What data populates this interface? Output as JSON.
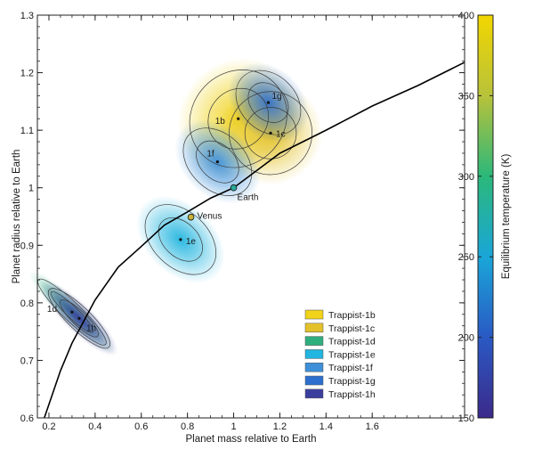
{
  "chart_data": {
    "type": "scatter",
    "title": "",
    "xlabel": "Planet mass relative to Earth",
    "ylabel": "Planet radius relative to Earth",
    "xlim": [
      0.15,
      2.0
    ],
    "ylim": [
      0.6,
      1.3
    ],
    "x_ticks": [
      "0.2",
      "0.4",
      "0.6",
      "0.8",
      "1",
      "1.2",
      "1.4",
      "1.6"
    ],
    "x_tick_values": [
      0.2,
      0.4,
      0.6,
      0.8,
      1.0,
      1.2,
      1.4,
      1.6
    ],
    "y_ticks": [
      "0.6",
      "0.7",
      "0.8",
      "0.9",
      "1",
      "1.1",
      "1.2",
      "1.3"
    ],
    "y_tick_values": [
      0.6,
      0.7,
      0.8,
      0.9,
      1.0,
      1.1,
      1.2,
      1.3
    ],
    "grid": false,
    "legend_position": "bottom-right",
    "colorbar": {
      "label": "Equilibrium temperature (K)",
      "range": [
        150,
        400
      ],
      "ticks": [
        "150",
        "200",
        "250",
        "300",
        "350",
        "400"
      ],
      "tick_values": [
        150,
        200,
        250,
        300,
        350,
        400
      ],
      "colors": [
        "#3b2a8a",
        "#2a59c4",
        "#1aa6d8",
        "#2bb87a",
        "#b8c23a",
        "#f2d600"
      ]
    },
    "series": [
      {
        "name": "Trappist-1b",
        "label": "1b",
        "mass": 1.02,
        "radius": 1.12,
        "mass_spread": 0.22,
        "radius_spread": 0.045,
        "temp_color": "#f0d31a"
      },
      {
        "name": "Trappist-1c",
        "label": "1c",
        "mass": 1.16,
        "radius": 1.095,
        "mass_spread": 0.18,
        "radius_spread": 0.04,
        "temp_color": "#e3c12a"
      },
      {
        "name": "Trappist-1d",
        "label": "1d",
        "mass": 0.3,
        "radius": 0.784,
        "mass_spread": 0.04,
        "radius_spread": 0.045,
        "temp_color": "#2fae7e"
      },
      {
        "name": "Trappist-1e",
        "label": "1e",
        "mass": 0.77,
        "radius": 0.91,
        "mass_spread": 0.12,
        "radius_spread": 0.04,
        "temp_color": "#22b5df"
      },
      {
        "name": "Trappist-1f",
        "label": "1f",
        "mass": 0.93,
        "radius": 1.045,
        "mass_spread": 0.12,
        "radius_spread": 0.038,
        "temp_color": "#3d8fd8"
      },
      {
        "name": "Trappist-1g",
        "label": "1g",
        "mass": 1.15,
        "radius": 1.148,
        "mass_spread": 0.12,
        "radius_spread": 0.035,
        "temp_color": "#2d6fce"
      },
      {
        "name": "Trappist-1h",
        "label": "1h",
        "mass": 0.331,
        "radius": 0.773,
        "mass_spread": 0.05,
        "radius_spread": 0.04,
        "temp_color": "#3a3f9e"
      }
    ],
    "reference_points": [
      {
        "name": "Earth",
        "mass": 1.0,
        "radius": 1.0,
        "color": "#2aa89b"
      },
      {
        "name": "Venus",
        "mass": 0.815,
        "radius": 0.949,
        "color": "#c8b03a"
      }
    ],
    "reference_curve": {
      "x": [
        0.18,
        0.25,
        0.3,
        0.4,
        0.5,
        0.6,
        0.7,
        0.8,
        0.9,
        1.0,
        1.1,
        1.2,
        1.4,
        1.6,
        1.8,
        2.0
      ],
      "y": [
        0.6,
        0.682,
        0.73,
        0.805,
        0.862,
        0.898,
        0.935,
        0.958,
        0.982,
        1.0,
        1.03,
        1.06,
        1.1,
        1.142,
        1.178,
        1.218
      ]
    }
  }
}
